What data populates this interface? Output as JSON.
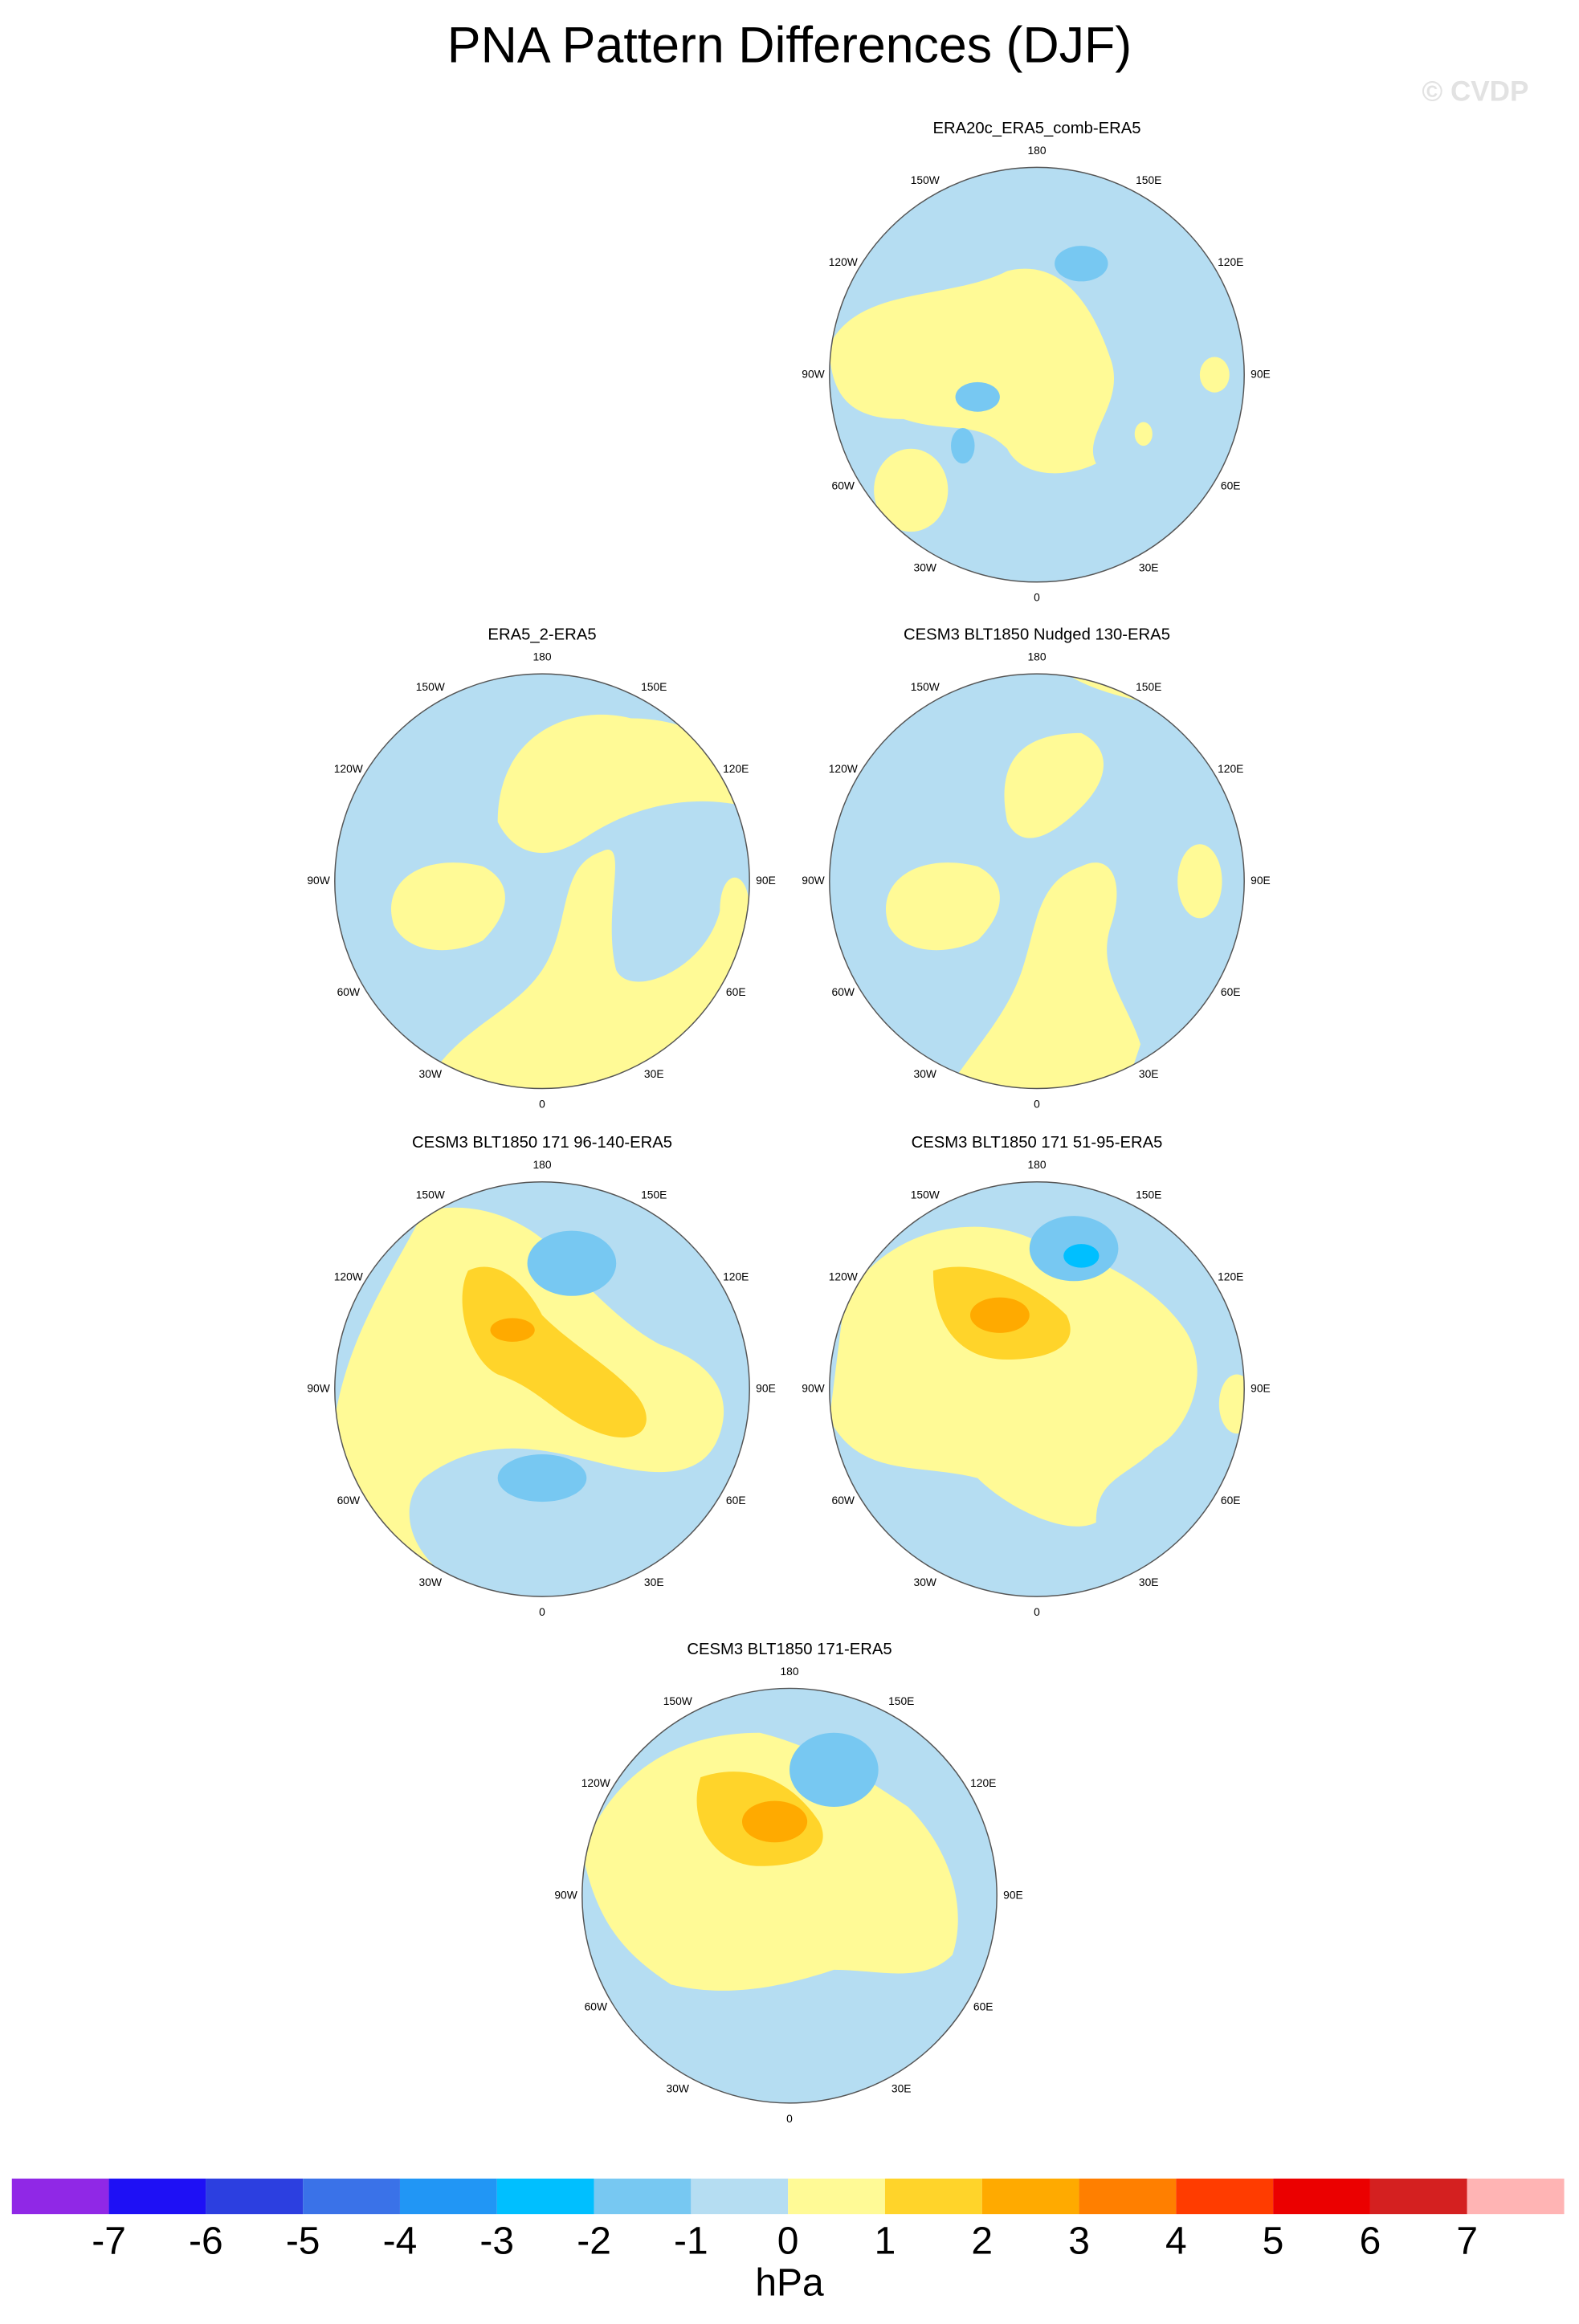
{
  "title": "PNA Pattern Differences (DJF)",
  "watermark": "© CVDP",
  "panels": [
    {
      "title": "ERA20c_ERA5_comb-ERA5"
    },
    {
      "title": "ERA5_2-ERA5"
    },
    {
      "title": "CESM3 BLT1850 Nudged 130-ERA5"
    },
    {
      "title": "CESM3 BLT1850 171 96-140-ERA5"
    },
    {
      "title": "CESM3 BLT1850 171 51-95-ERA5"
    },
    {
      "title": "CESM3 BLT1850 171-ERA5"
    }
  ],
  "lon_labels": [
    "180",
    "150E",
    "120E",
    "90E",
    "60E",
    "30E",
    "0",
    "30W",
    "60W",
    "90W",
    "120W",
    "150W"
  ],
  "colorbar": {
    "levels": [
      -7,
      -6,
      -5,
      -4,
      -3,
      -2,
      -1,
      0,
      1,
      2,
      3,
      4,
      5,
      6,
      7
    ],
    "colors": [
      "#9028e6",
      "#1e10f5",
      "#2c3fe0",
      "#3a72e8",
      "#2196f5",
      "#00bfff",
      "#77c8f2",
      "#b5ddf2",
      "#fffa96",
      "#ffd42a",
      "#ffaa00",
      "#ff7f00",
      "#ff3c00",
      "#eb0000",
      "#d42020",
      "#ffb4b4"
    ],
    "unit": "hPa"
  }
}
